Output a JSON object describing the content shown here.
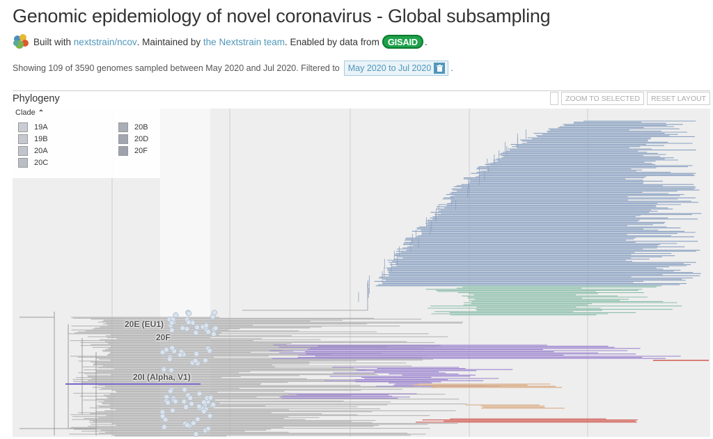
{
  "header": {
    "title": "Genomic epidemiology of novel coronavirus - Global subsampling",
    "built_with_prefix": "Built with",
    "built_link": "nextstrain/ncov",
    "maintained_prefix": ". Maintained by",
    "team_link": "the Nextstrain team",
    "data_prefix": ". Enabled by data from",
    "gisaid": "GISAID",
    "suffix": "."
  },
  "info": {
    "text": "Showing 109 of 3590 genomes sampled between May 2020 and Jul 2020. Filtered to",
    "filter_value": "May 2020 to Jul 2020",
    "suffix": "."
  },
  "panel": {
    "title": "Phylogeny",
    "zoom_selected": "ZOOM TO SELECTED",
    "reset_layout": "RESET LAYOUT"
  },
  "legend": {
    "title": "Clade",
    "items": [
      {
        "label": "19A",
        "color": "#c9cdd3"
      },
      {
        "label": "19B",
        "color": "#c5c9cf"
      },
      {
        "label": "20A",
        "color": "#c0c5cc"
      },
      {
        "label": "20C",
        "color": "#b9bec6"
      },
      {
        "label": "20B",
        "color": "#a9adb6"
      },
      {
        "label": "20D",
        "color": "#a2a6b0"
      },
      {
        "label": "20F",
        "color": "#9ea2ac"
      }
    ]
  },
  "tree_labels": {
    "eu1": "20E (EU1)",
    "f": "20F",
    "alpha": "20I (Alpha, V1)"
  },
  "colors": {
    "link": "#5097ba",
    "tree_bg": "#eeeeee",
    "grey_branch": "#b0b0b0",
    "blue_clade": "#8aa1c1",
    "teal_clade": "#8cbfac",
    "purple_clade": "#9b83cf",
    "orange_clade": "#d7a57a",
    "red_clade": "#d0584f",
    "gisaid": "#1ea24a"
  }
}
